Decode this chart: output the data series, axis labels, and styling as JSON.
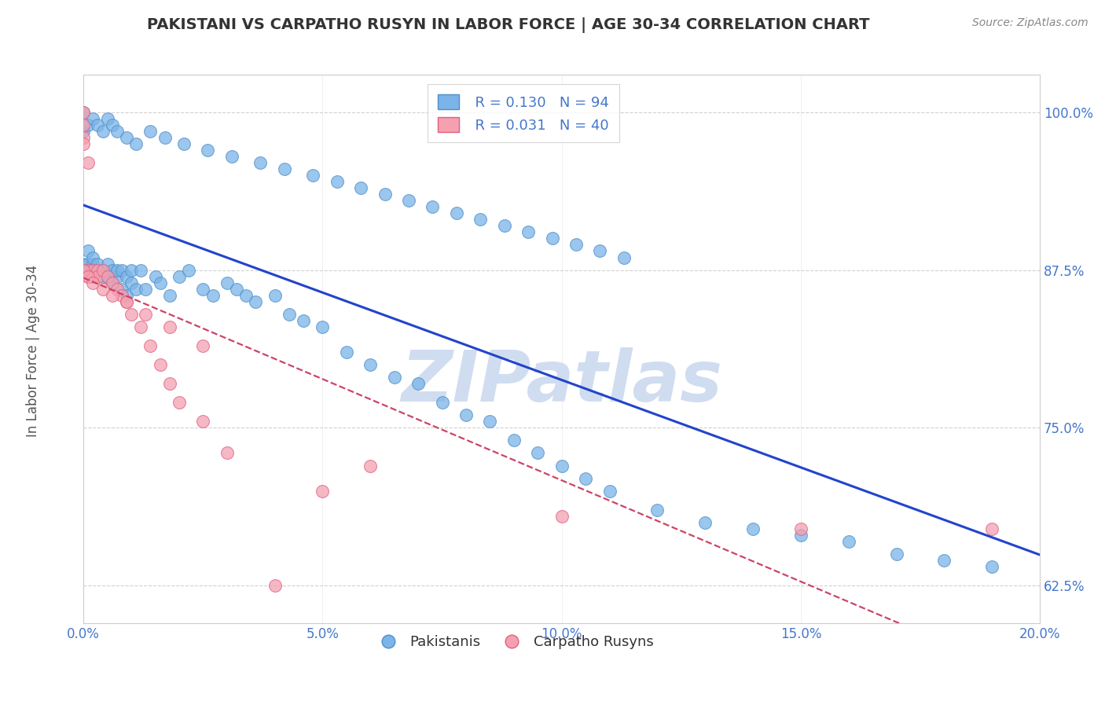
{
  "title": "PAKISTANI VS CARPATHO RUSYN IN LABOR FORCE | AGE 30-34 CORRELATION CHART",
  "source": "Source: ZipAtlas.com",
  "ylabel": "In Labor Force | Age 30-34",
  "xlim": [
    0.0,
    0.2
  ],
  "ylim": [
    0.595,
    1.03
  ],
  "xticks": [
    0.0,
    0.05,
    0.1,
    0.15,
    0.2
  ],
  "xtick_labels": [
    "0.0%",
    "5.0%",
    "10.0%",
    "15.0%",
    "20.0%"
  ],
  "yticks": [
    0.625,
    0.75,
    0.875,
    1.0
  ],
  "ytick_labels": [
    "62.5%",
    "75.0%",
    "87.5%",
    "100.0%"
  ],
  "blue_color": "#7ab4e8",
  "pink_color": "#f4a0b0",
  "blue_edge": "#5090c8",
  "pink_edge": "#e06080",
  "trend_blue": "#2244cc",
  "trend_pink": "#cc4466",
  "legend_R_blue": "R = 0.130",
  "legend_N_blue": "N = 94",
  "legend_R_pink": "R = 0.031",
  "legend_N_pink": "N = 40",
  "title_color": "#333333",
  "axis_label_color": "#555555",
  "tick_color": "#4477cc",
  "watermark": "ZIPatlas",
  "watermark_color": "#d0ddf0",
  "pakistanis_label": "Pakistanis",
  "carpatho_label": "Carpatho Rusyns",
  "blue_scatter_x": [
    0.0,
    0.0,
    0.001,
    0.001,
    0.001,
    0.002,
    0.002,
    0.002,
    0.003,
    0.003,
    0.004,
    0.004,
    0.005,
    0.005,
    0.006,
    0.006,
    0.007,
    0.007,
    0.008,
    0.008,
    0.009,
    0.009,
    0.01,
    0.01,
    0.011,
    0.012,
    0.013,
    0.015,
    0.016,
    0.018,
    0.02,
    0.022,
    0.025,
    0.027,
    0.03,
    0.032,
    0.034,
    0.036,
    0.04,
    0.043,
    0.046,
    0.05,
    0.055,
    0.06,
    0.065,
    0.07,
    0.075,
    0.08,
    0.085,
    0.09,
    0.095,
    0.1,
    0.105,
    0.11,
    0.12,
    0.13,
    0.14,
    0.15,
    0.16,
    0.17,
    0.18,
    0.19,
    0.0,
    0.0,
    0.001,
    0.002,
    0.003,
    0.004,
    0.005,
    0.006,
    0.007,
    0.009,
    0.011,
    0.014,
    0.017,
    0.021,
    0.026,
    0.031,
    0.037,
    0.042,
    0.048,
    0.053,
    0.058,
    0.063,
    0.068,
    0.073,
    0.078,
    0.083,
    0.088,
    0.093,
    0.098,
    0.103,
    0.108,
    0.113
  ],
  "blue_scatter_y": [
    0.875,
    0.88,
    0.89,
    0.88,
    0.875,
    0.87,
    0.88,
    0.885,
    0.875,
    0.88,
    0.875,
    0.87,
    0.88,
    0.87,
    0.875,
    0.865,
    0.87,
    0.875,
    0.86,
    0.875,
    0.855,
    0.87,
    0.875,
    0.865,
    0.86,
    0.875,
    0.86,
    0.87,
    0.865,
    0.855,
    0.87,
    0.875,
    0.86,
    0.855,
    0.865,
    0.86,
    0.855,
    0.85,
    0.855,
    0.84,
    0.835,
    0.83,
    0.81,
    0.8,
    0.79,
    0.785,
    0.77,
    0.76,
    0.755,
    0.74,
    0.73,
    0.72,
    0.71,
    0.7,
    0.685,
    0.675,
    0.67,
    0.665,
    0.66,
    0.65,
    0.645,
    0.64,
    1.0,
    0.985,
    0.99,
    0.995,
    0.99,
    0.985,
    0.995,
    0.99,
    0.985,
    0.98,
    0.975,
    0.985,
    0.98,
    0.975,
    0.97,
    0.965,
    0.96,
    0.955,
    0.95,
    0.945,
    0.94,
    0.935,
    0.93,
    0.925,
    0.92,
    0.915,
    0.91,
    0.905,
    0.9,
    0.895,
    0.89,
    0.885
  ],
  "pink_scatter_x": [
    0.0,
    0.0,
    0.0,
    0.0,
    0.001,
    0.001,
    0.001,
    0.002,
    0.002,
    0.003,
    0.003,
    0.004,
    0.005,
    0.006,
    0.007,
    0.008,
    0.009,
    0.01,
    0.012,
    0.014,
    0.016,
    0.018,
    0.02,
    0.025,
    0.03,
    0.05,
    0.1,
    0.15,
    0.19,
    0.0,
    0.001,
    0.002,
    0.004,
    0.006,
    0.009,
    0.013,
    0.018,
    0.025,
    0.04,
    0.06
  ],
  "pink_scatter_y": [
    1.0,
    0.99,
    0.98,
    0.975,
    0.96,
    0.875,
    0.87,
    0.875,
    0.87,
    0.875,
    0.87,
    0.875,
    0.87,
    0.865,
    0.86,
    0.855,
    0.85,
    0.84,
    0.83,
    0.815,
    0.8,
    0.785,
    0.77,
    0.755,
    0.73,
    0.7,
    0.68,
    0.67,
    0.67,
    0.875,
    0.87,
    0.865,
    0.86,
    0.855,
    0.85,
    0.84,
    0.83,
    0.815,
    0.625,
    0.72
  ]
}
